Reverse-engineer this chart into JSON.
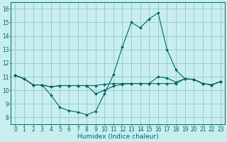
{
  "xlabel": "Humidex (Indice chaleur)",
  "background_color": "#c8eef0",
  "grid_color": "#99cccc",
  "line_color": "#006666",
  "xlim": [
    -0.5,
    23.5
  ],
  "ylim": [
    7.5,
    16.5
  ],
  "xticks": [
    0,
    1,
    2,
    3,
    4,
    5,
    6,
    7,
    8,
    9,
    10,
    11,
    12,
    13,
    14,
    15,
    16,
    17,
    18,
    19,
    20,
    21,
    22,
    23
  ],
  "yticks": [
    8,
    9,
    10,
    11,
    12,
    13,
    14,
    15,
    16
  ],
  "curve1_x": [
    0,
    1,
    2,
    3,
    4,
    5,
    6,
    7,
    8,
    9,
    10,
    11,
    12,
    13,
    14,
    15,
    16,
    17,
    18,
    19,
    20,
    21,
    22,
    23
  ],
  "curve1_y": [
    11.1,
    10.85,
    10.4,
    10.4,
    9.65,
    8.75,
    8.5,
    8.4,
    8.2,
    8.45,
    9.75,
    11.15,
    13.2,
    15.0,
    14.6,
    15.25,
    15.7,
    13.0,
    11.5,
    10.85,
    10.8,
    10.5,
    10.4,
    10.65
  ],
  "curve2_x": [
    0,
    1,
    2,
    3,
    4,
    5,
    6,
    7,
    8,
    9,
    10,
    11,
    12,
    13,
    14,
    15,
    16,
    17,
    18,
    19,
    20,
    21,
    22,
    23
  ],
  "curve2_y": [
    11.1,
    10.85,
    10.4,
    10.4,
    10.25,
    10.35,
    10.35,
    10.35,
    10.35,
    10.35,
    10.45,
    10.5,
    10.5,
    10.5,
    10.5,
    10.5,
    10.5,
    10.5,
    10.5,
    10.85,
    10.8,
    10.5,
    10.4,
    10.65
  ],
  "curve3_x": [
    0,
    1,
    2,
    3,
    4,
    5,
    6,
    7,
    8,
    9,
    10,
    11,
    12,
    13,
    14,
    15,
    16,
    17,
    18,
    19,
    20,
    21,
    22,
    23
  ],
  "curve3_y": [
    11.1,
    10.85,
    10.4,
    10.4,
    10.25,
    10.35,
    10.35,
    10.35,
    10.35,
    9.75,
    10.0,
    10.3,
    10.45,
    10.5,
    10.5,
    10.5,
    11.0,
    10.9,
    10.6,
    10.85,
    10.8,
    10.5,
    10.4,
    10.65
  ],
  "tick_fontsize": 5.5,
  "xlabel_fontsize": 6.5
}
